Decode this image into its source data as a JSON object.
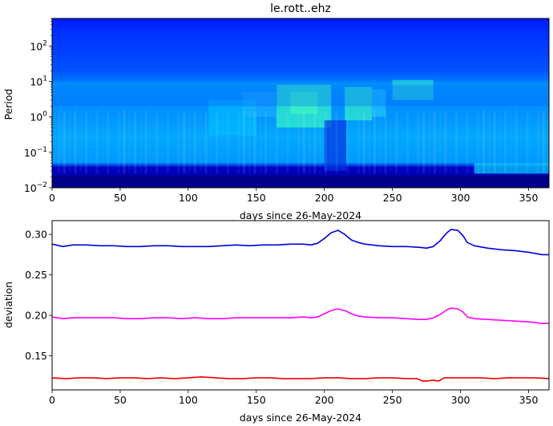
{
  "chart_data": [
    {
      "type": "heatmap",
      "title": "le.rott..ehz",
      "xlabel": "days since 26-May-2024",
      "ylabel": "Period",
      "xlim": [
        0,
        365
      ],
      "ylim": [
        0.01,
        600
      ],
      "yscale": "log",
      "xticks": [
        0,
        50,
        100,
        150,
        200,
        250,
        300,
        350
      ],
      "yticks": [
        {
          "value": 0.01,
          "base": "10",
          "exp": "−2"
        },
        {
          "value": 0.1,
          "base": "10",
          "exp": "−1"
        },
        {
          "value": 1,
          "base": "10",
          "exp": "0"
        },
        {
          "value": 10,
          "base": "10",
          "exp": "1"
        },
        {
          "value": 100,
          "base": "10",
          "exp": "2"
        }
      ],
      "colormap": "jet",
      "colors": {
        "low": "#00008b",
        "mid": "#0060ff",
        "high": "#40ffc0"
      }
    },
    {
      "type": "line",
      "xlabel": "days since 26-May-2024",
      "ylabel": "deviation",
      "xlim": [
        0,
        365
      ],
      "ylim": [
        0.108,
        0.317
      ],
      "xticks": [
        0,
        50,
        100,
        150,
        200,
        250,
        300,
        350
      ],
      "yticks": [
        0.15,
        0.2,
        0.25,
        0.3
      ],
      "ytick_labels": [
        "0.15",
        "0.20",
        "0.25",
        "0.30"
      ],
      "series": [
        {
          "color": "#0000dd",
          "x": [
            0,
            8,
            15,
            25,
            35,
            45,
            55,
            65,
            75,
            85,
            95,
            105,
            115,
            125,
            135,
            145,
            155,
            165,
            175,
            185,
            190,
            195,
            200,
            205,
            210,
            215,
            220,
            225,
            230,
            240,
            250,
            260,
            270,
            275,
            280,
            285,
            290,
            293,
            298,
            302,
            305,
            310,
            320,
            330,
            340,
            350,
            360,
            365
          ],
          "y": [
            0.288,
            0.285,
            0.287,
            0.287,
            0.286,
            0.286,
            0.285,
            0.285,
            0.286,
            0.286,
            0.285,
            0.285,
            0.285,
            0.286,
            0.287,
            0.286,
            0.287,
            0.287,
            0.288,
            0.288,
            0.287,
            0.289,
            0.295,
            0.302,
            0.305,
            0.3,
            0.293,
            0.29,
            0.288,
            0.286,
            0.285,
            0.285,
            0.284,
            0.283,
            0.285,
            0.292,
            0.302,
            0.306,
            0.305,
            0.298,
            0.29,
            0.286,
            0.283,
            0.281,
            0.28,
            0.278,
            0.275,
            0.275
          ]
        },
        {
          "color": "#ff00ff",
          "x": [
            0,
            8,
            15,
            25,
            35,
            45,
            55,
            65,
            75,
            85,
            95,
            105,
            115,
            125,
            135,
            145,
            155,
            165,
            175,
            185,
            190,
            195,
            200,
            205,
            210,
            215,
            220,
            225,
            230,
            240,
            250,
            260,
            270,
            275,
            280,
            285,
            290,
            293,
            298,
            302,
            305,
            310,
            320,
            330,
            340,
            350,
            360,
            365
          ],
          "y": [
            0.198,
            0.196,
            0.197,
            0.197,
            0.197,
            0.197,
            0.196,
            0.196,
            0.197,
            0.197,
            0.196,
            0.197,
            0.196,
            0.196,
            0.197,
            0.197,
            0.197,
            0.197,
            0.197,
            0.198,
            0.197,
            0.198,
            0.202,
            0.206,
            0.208,
            0.206,
            0.202,
            0.199,
            0.198,
            0.197,
            0.197,
            0.196,
            0.195,
            0.195,
            0.197,
            0.201,
            0.207,
            0.209,
            0.208,
            0.204,
            0.198,
            0.196,
            0.195,
            0.194,
            0.193,
            0.192,
            0.19,
            0.19
          ]
        },
        {
          "color": "#ee0000",
          "x": [
            0,
            10,
            20,
            30,
            40,
            50,
            60,
            70,
            80,
            90,
            100,
            110,
            120,
            130,
            140,
            150,
            160,
            170,
            180,
            190,
            200,
            210,
            220,
            230,
            240,
            250,
            260,
            268,
            272,
            275,
            280,
            284,
            288,
            295,
            305,
            315,
            325,
            335,
            345,
            355,
            365
          ],
          "y": [
            0.123,
            0.122,
            0.123,
            0.123,
            0.122,
            0.123,
            0.123,
            0.122,
            0.123,
            0.122,
            0.123,
            0.124,
            0.123,
            0.122,
            0.122,
            0.123,
            0.123,
            0.122,
            0.122,
            0.122,
            0.123,
            0.123,
            0.122,
            0.122,
            0.123,
            0.123,
            0.122,
            0.122,
            0.119,
            0.119,
            0.12,
            0.119,
            0.123,
            0.123,
            0.123,
            0.123,
            0.122,
            0.123,
            0.123,
            0.123,
            0.122
          ]
        }
      ]
    }
  ]
}
